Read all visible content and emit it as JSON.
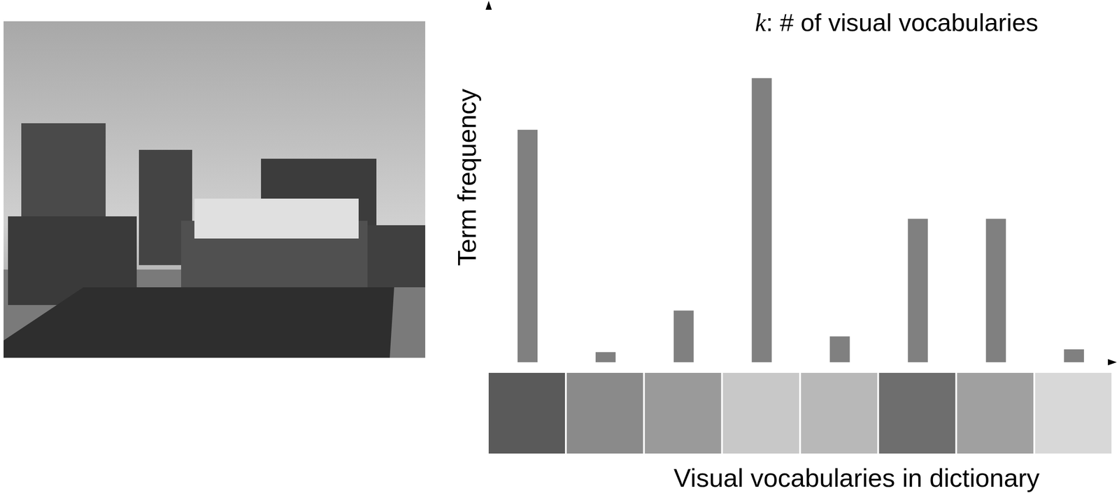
{
  "chart_data": {
    "type": "bar",
    "title": "k: # of visual vocabularies",
    "x_label": "Visual vocabularies in dictionary",
    "y_label": "Term frequency",
    "categories": [
      null,
      null,
      null,
      null,
      null,
      null,
      null,
      null
    ],
    "values": [
      81,
      3.5,
      18,
      99,
      9,
      50,
      50,
      4.5
    ],
    "color": "#808080",
    "ylim": [
      0,
      125
    ],
    "grid": false,
    "tick_labels": false
  }
}
